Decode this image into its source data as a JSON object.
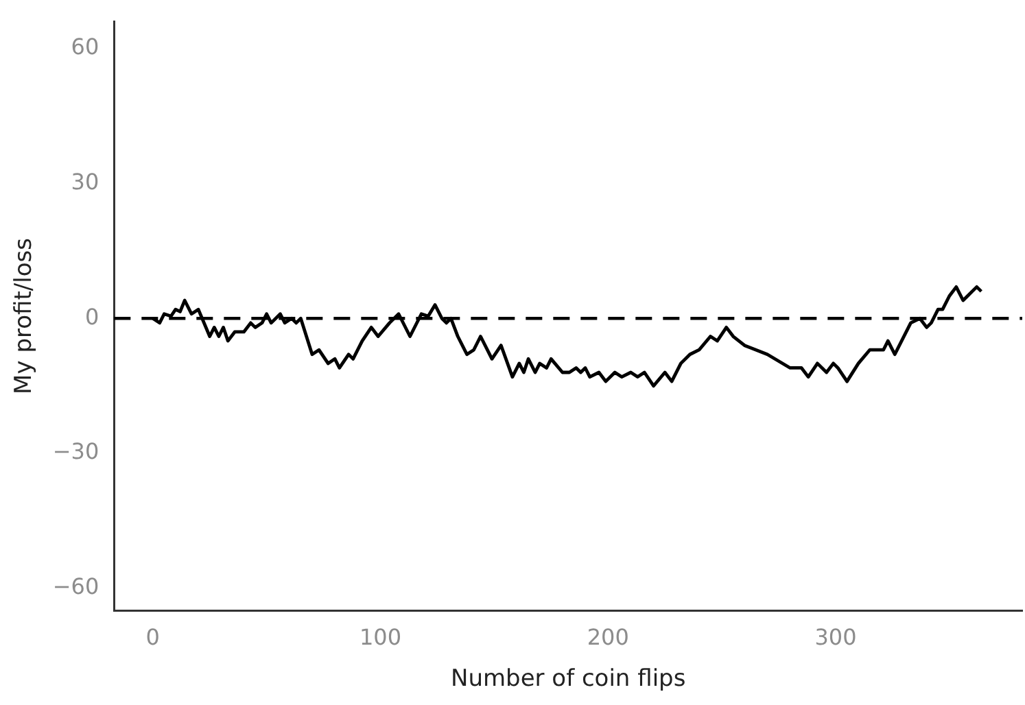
{
  "chart_data": {
    "type": "line",
    "xlabel": "Number of coin flips",
    "ylabel": "My profit/loss",
    "x": [
      0,
      3,
      5,
      8,
      10,
      12,
      14,
      17,
      20,
      25,
      27,
      29,
      31,
      33,
      36,
      40,
      43,
      45,
      48,
      50,
      52,
      56,
      58,
      61,
      63,
      65,
      70,
      73,
      77,
      80,
      82,
      86,
      88,
      92,
      96,
      99,
      104,
      108,
      113,
      118,
      121,
      124,
      127,
      129,
      131,
      134,
      138,
      141,
      144,
      149,
      153,
      158,
      161,
      163,
      165,
      168,
      170,
      173,
      175,
      180,
      183,
      186,
      188,
      190,
      192,
      196,
      199,
      203,
      206,
      210,
      213,
      216,
      220,
      225,
      228,
      232,
      236,
      240,
      245,
      248,
      252,
      255,
      260,
      270,
      280,
      285,
      288,
      292,
      296,
      299,
      301,
      305,
      310,
      315,
      318,
      321,
      323,
      326,
      333,
      337,
      340,
      342,
      345,
      347,
      350,
      353,
      356,
      358,
      360,
      362,
      364
    ],
    "series": [
      {
        "color": "#000000",
        "values": [
          0,
          -1,
          1,
          0.5,
          2,
          1.5,
          4,
          1,
          2,
          -4,
          -2,
          -4,
          -2,
          -5,
          -3,
          -3,
          -1,
          -2,
          -1,
          1,
          -1,
          1,
          -1,
          0,
          -1,
          0,
          -8,
          -7,
          -10,
          -9,
          -11,
          -8,
          -9,
          -5,
          -2,
          -4,
          -1,
          1,
          -4,
          1,
          0.5,
          3,
          0,
          -1,
          0,
          -4,
          -8,
          -7,
          -4,
          -9,
          -6,
          -13,
          -10,
          -12,
          -9,
          -12,
          -10,
          -11,
          -9,
          -12,
          -12,
          -11,
          -12,
          -11,
          -13,
          -12,
          -14,
          -12,
          -13,
          -12,
          -13,
          -12,
          -15,
          -12,
          -14,
          -10,
          -8,
          -7,
          -4,
          -5,
          -2,
          -4,
          -6,
          -8,
          -11,
          -11,
          -13,
          -10,
          -12,
          -10,
          -11,
          -14,
          -10,
          -7,
          -7,
          -7,
          -5,
          -8,
          -1,
          0,
          -2,
          -1,
          2,
          2,
          5,
          7,
          4,
          5,
          6,
          7,
          6
        ]
      }
    ],
    "xlim": [
      -17,
      382
    ],
    "ylim": [
      -65,
      66
    ],
    "xticks": [
      0,
      100,
      200,
      300
    ],
    "yticks": [
      -60,
      -30,
      0,
      30,
      60
    ],
    "grid": false,
    "legend": false,
    "marker": "none",
    "line_style": "solid",
    "ref_lines": [
      {
        "axis": "y",
        "value": 0,
        "line_style": "dashed",
        "color": "#000000"
      }
    ]
  }
}
